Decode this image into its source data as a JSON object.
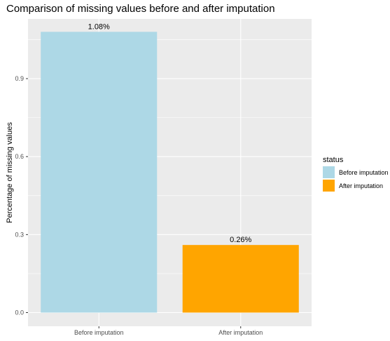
{
  "chart_data": {
    "type": "bar",
    "title": "Comparison of missing values before and after imputation",
    "xlabel": "",
    "ylabel": "Percentage of missing values",
    "categories": [
      "Before imputation",
      "After imputation"
    ],
    "values": [
      1.08,
      0.26
    ],
    "data_labels": [
      "1.08%",
      "0.26%"
    ],
    "y_ticks": [
      0.0,
      0.3,
      0.6,
      0.9
    ],
    "y_tick_labels": [
      "0.0",
      "0.3",
      "0.6",
      "0.9"
    ],
    "ylim": [
      0,
      1.134
    ],
    "grid": true,
    "legend": {
      "title": "status",
      "placement": "right",
      "entries": [
        "Before imputation",
        "After imputation"
      ]
    },
    "colors": {
      "Before imputation": "#add8e6",
      "After imputation": "#ffa500",
      "panel_background": "#ebebeb",
      "grid": "#ffffff"
    }
  }
}
